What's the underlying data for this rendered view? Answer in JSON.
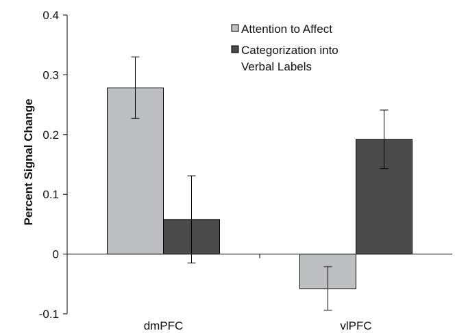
{
  "chart_data": {
    "type": "bar",
    "title": "",
    "xlabel": "",
    "ylabel": "Percent Signal Change",
    "ylim": [
      -0.1,
      0.4
    ],
    "yticks": [
      {
        "value": -0.1,
        "label": "-0.1"
      },
      {
        "value": 0,
        "label": "0"
      },
      {
        "value": 0.1,
        "label": "0.1"
      },
      {
        "value": 0.2,
        "label": "0.2"
      },
      {
        "value": 0.3,
        "label": "0.3"
      },
      {
        "value": 0.4,
        "label": "0.4"
      }
    ],
    "categories": [
      "dmPFC",
      "vlPFC"
    ],
    "series": [
      {
        "name": "Attention to Affect",
        "color": "#bdbec0",
        "values": [
          0.278,
          -0.058
        ],
        "error_low": [
          0.227,
          -0.094
        ],
        "error_high": [
          0.33,
          -0.021
        ]
      },
      {
        "name": "Categorization into Verbal Labels",
        "name_lines": [
          "Categorization into",
          "Verbal Labels"
        ],
        "color": "#4a4a4a",
        "values": [
          0.058,
          0.192
        ],
        "error_low": [
          -0.015,
          0.143
        ],
        "error_high": [
          0.131,
          0.241
        ]
      }
    ],
    "legend_position": "top-right",
    "grid": false
  }
}
